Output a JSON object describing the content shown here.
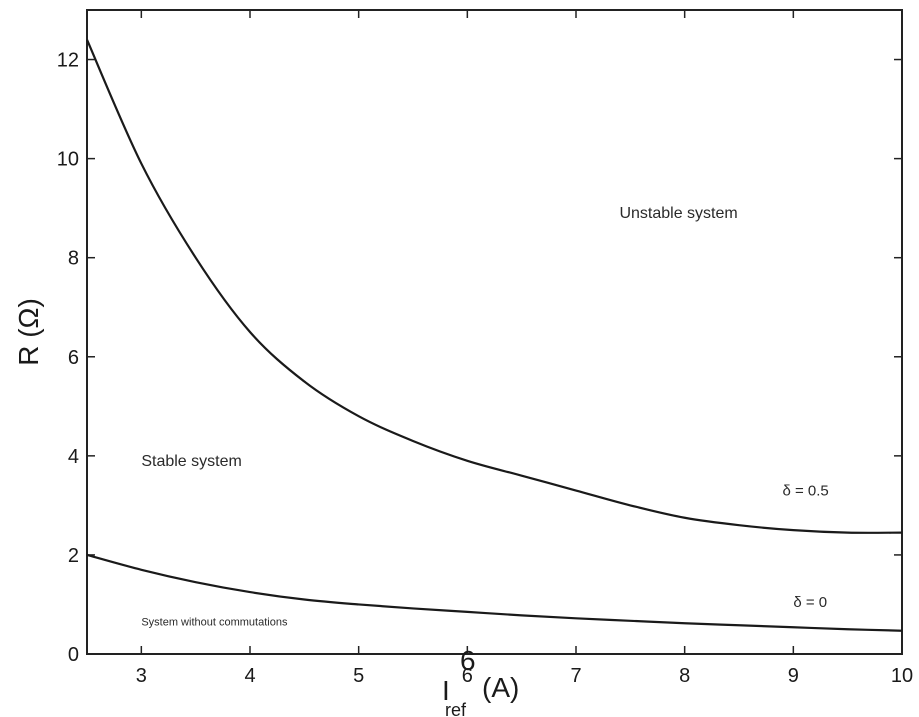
{
  "chart_data": {
    "type": "line",
    "title": "",
    "xlabel": "I",
    "xlabel_subscript": "ref",
    "xlabel_unit": "(A)",
    "ylabel": "R (Ω)",
    "xlim": [
      2.5,
      10
    ],
    "ylim": [
      0,
      13
    ],
    "xticks": [
      3,
      4,
      5,
      6,
      7,
      8,
      9,
      10
    ],
    "yticks": [
      0,
      2,
      4,
      6,
      8,
      10,
      12
    ],
    "grid": false,
    "series": [
      {
        "name": "δ = 0.5",
        "x": [
          2.5,
          3,
          3.5,
          4,
          4.5,
          5,
          5.5,
          6,
          6.5,
          7,
          7.5,
          8,
          8.5,
          9,
          9.5,
          10
        ],
        "y": [
          12.4,
          9.9,
          8.0,
          6.5,
          5.5,
          4.8,
          4.3,
          3.9,
          3.6,
          3.3,
          3.0,
          2.75,
          2.6,
          2.5,
          2.45,
          2.45
        ]
      },
      {
        "name": "δ = 0",
        "x": [
          2.5,
          3,
          3.5,
          4,
          4.5,
          5,
          5.5,
          6,
          6.5,
          7,
          7.5,
          8,
          8.5,
          9,
          9.5,
          10
        ],
        "y": [
          2.0,
          1.7,
          1.45,
          1.25,
          1.1,
          1.0,
          0.92,
          0.85,
          0.78,
          0.72,
          0.67,
          0.62,
          0.58,
          0.54,
          0.5,
          0.47
        ]
      }
    ],
    "annotations": [
      {
        "text": "Unstable system",
        "x": 7.4,
        "y": 8.8
      },
      {
        "text": "Stable system",
        "x": 3.0,
        "y": 3.8
      },
      {
        "text": "System without commutations",
        "x": 3.0,
        "y": 0.58
      },
      {
        "text": "δ = 0.5",
        "x": 8.9,
        "y": 3.2
      },
      {
        "text": "δ = 0",
        "x": 9.0,
        "y": 0.95
      }
    ],
    "stray_tick_text": "6"
  }
}
